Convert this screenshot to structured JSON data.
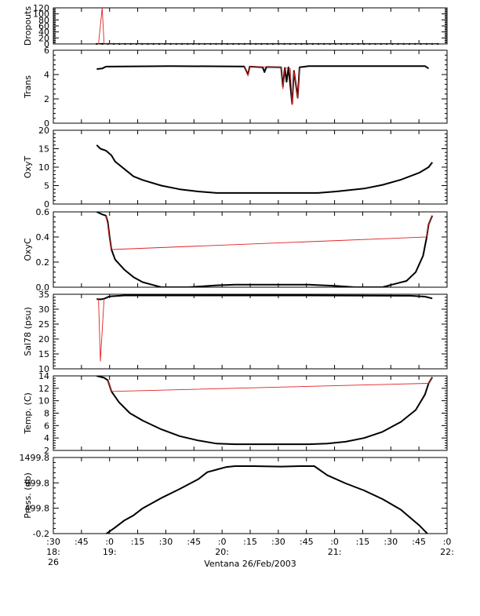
{
  "chart_data": {
    "type": "line",
    "xlabel": "Ventana 26/Feb/2003",
    "xlim": [
      "18:26:30",
      "22:00"
    ],
    "x_ticks": [
      {
        "label": ":30",
        "hour": "18:",
        "day": "26"
      },
      {
        "label": ":45",
        "hour": "",
        "day": ""
      },
      {
        "label": ":0",
        "hour": "19:",
        "day": ""
      },
      {
        "label": ":15",
        "hour": "",
        "day": ""
      },
      {
        "label": ":30",
        "hour": "",
        "day": ""
      },
      {
        "label": ":45",
        "hour": "",
        "day": ""
      },
      {
        "label": ":0",
        "hour": "20:",
        "day": ""
      },
      {
        "label": ":15",
        "hour": "",
        "day": ""
      },
      {
        "label": ":30",
        "hour": "",
        "day": ""
      },
      {
        "label": ":45",
        "hour": "",
        "day": ""
      },
      {
        "label": ":0",
        "hour": "21:",
        "day": ""
      },
      {
        "label": ":15",
        "hour": "",
        "day": ""
      },
      {
        "label": ":30",
        "hour": "",
        "day": ""
      },
      {
        "label": ":45",
        "hour": "",
        "day": ""
      },
      {
        "label": ":0",
        "hour": "22:",
        "day": ""
      }
    ],
    "panels": [
      {
        "ylabel": "Dropouts",
        "ylim": [
          0,
          130
        ],
        "ytick_labels": [
          "0",
          "20",
          "40",
          "60",
          "80",
          "100",
          "120"
        ],
        "series": [
          {
            "color": "#000000",
            "points": [
              [
                "18:50",
                0
              ],
              [
                "21:55",
                0
              ]
            ]
          },
          {
            "color": "#e02020",
            "points": [
              [
                "18:50",
                0
              ],
              [
                "18:51",
                0
              ],
              [
                "18:53",
                130
              ],
              [
                "18:54",
                0
              ],
              [
                "21:55",
                0
              ]
            ]
          }
        ]
      },
      {
        "ylabel": "Trans",
        "ylim": [
          0,
          6
        ],
        "ytick_labels": [
          "0",
          "2",
          "4",
          "6"
        ],
        "series": [
          {
            "color": "#000000",
            "points": [
              [
                "18:50",
                4.45
              ],
              [
                "18:53",
                4.5
              ],
              [
                "18:55",
                4.65
              ],
              [
                "19:30",
                4.7
              ],
              [
                "20:10",
                4.66
              ],
              [
                "20:12",
                4.0
              ],
              [
                "20:13",
                4.65
              ],
              [
                "20:20",
                4.6
              ],
              [
                "20:21",
                4.2
              ],
              [
                "20:22",
                4.62
              ],
              [
                "20:30",
                4.6
              ],
              [
                "20:31",
                3.0
              ],
              [
                "20:32",
                4.55
              ],
              [
                "20:33",
                3.4
              ],
              [
                "20:34",
                4.6
              ],
              [
                "20:36",
                1.6
              ],
              [
                "20:37",
                4.3
              ],
              [
                "20:39",
                2.1
              ],
              [
                "20:40",
                4.6
              ],
              [
                "20:45",
                4.7
              ],
              [
                "21:48",
                4.7
              ],
              [
                "21:50",
                4.5
              ]
            ]
          },
          {
            "color": "#e02020",
            "points": [
              [
                "20:10",
                4.66
              ],
              [
                "20:12",
                3.9
              ],
              [
                "20:13",
                4.65
              ],
              [
                "20:30",
                4.6
              ],
              [
                "20:31",
                2.8
              ],
              [
                "20:32",
                4.55
              ],
              [
                "20:35",
                4.5
              ],
              [
                "20:36",
                1.5
              ],
              [
                "20:37",
                4.3
              ],
              [
                "20:39",
                2.0
              ],
              [
                "20:40",
                4.6
              ]
            ]
          }
        ]
      },
      {
        "ylabel": "OxyT",
        "ylim": [
          0,
          20
        ],
        "ytick_labels": [
          "0",
          "5",
          "10",
          "15",
          "20"
        ],
        "series": [
          {
            "color": "#000000",
            "points": [
              [
                "18:50",
                16.0
              ],
              [
                "18:52",
                15.0
              ],
              [
                "18:55",
                14.5
              ],
              [
                "18:58",
                13.2
              ],
              [
                "19:00",
                11.5
              ],
              [
                "19:05",
                9.5
              ],
              [
                "19:10",
                7.5
              ],
              [
                "19:15",
                6.5
              ],
              [
                "19:25",
                5.0
              ],
              [
                "19:35",
                4.0
              ],
              [
                "19:45",
                3.4
              ],
              [
                "19:55",
                3.0
              ],
              [
                "20:05",
                3.0
              ],
              [
                "20:45",
                3.0
              ],
              [
                "20:50",
                3.0
              ],
              [
                "21:00",
                3.4
              ],
              [
                "21:15",
                4.2
              ],
              [
                "21:25",
                5.2
              ],
              [
                "21:35",
                6.6
              ],
              [
                "21:45",
                8.5
              ],
              [
                "21:50",
                10.0
              ],
              [
                "21:52",
                11.3
              ]
            ]
          }
        ]
      },
      {
        "ylabel": "OxyC",
        "ylim": [
          0.0,
          0.6
        ],
        "ytick_labels": [
          "0.0",
          "0.2",
          "0.4",
          "0.6"
        ],
        "series": [
          {
            "color": "#000000",
            "points": [
              [
                "18:50",
                0.6
              ],
              [
                "18:53",
                0.58
              ],
              [
                "18:55",
                0.57
              ],
              [
                "18:56",
                0.52
              ],
              [
                "18:57",
                0.4
              ],
              [
                "18:58",
                0.3
              ],
              [
                "19:00",
                0.22
              ],
              [
                "19:05",
                0.14
              ],
              [
                "19:10",
                0.08
              ],
              [
                "19:15",
                0.04
              ],
              [
                "19:20",
                0.02
              ],
              [
                "19:25",
                0.0
              ],
              [
                "19:40",
                0.0
              ],
              [
                "19:55",
                0.015
              ],
              [
                "20:05",
                0.02
              ],
              [
                "20:45",
                0.02
              ],
              [
                "21:00",
                0.01
              ],
              [
                "21:10",
                0.0
              ],
              [
                "21:25",
                0.0
              ],
              [
                "21:30",
                0.02
              ],
              [
                "21:38",
                0.05
              ],
              [
                "21:43",
                0.12
              ],
              [
                "21:47",
                0.25
              ],
              [
                "21:49",
                0.4
              ],
              [
                "21:50",
                0.5
              ],
              [
                "21:52",
                0.57
              ]
            ]
          },
          {
            "color": "#e02020",
            "points": [
              [
                "18:55",
                0.57
              ],
              [
                "18:56",
                0.5
              ],
              [
                "18:57",
                0.38
              ],
              [
                "18:58",
                0.3
              ],
              [
                "21:49",
                0.4
              ],
              [
                "21:50",
                0.5
              ],
              [
                "21:52",
                0.57
              ]
            ]
          }
        ]
      },
      {
        "ylabel": "Sal78 (psu)",
        "ylim": [
          10,
          35
        ],
        "ytick_labels": [
          "10",
          "15",
          "20",
          "25",
          "30",
          "35"
        ],
        "series": [
          {
            "color": "#000000",
            "points": [
              [
                "18:50",
                33.4
              ],
              [
                "18:52",
                33.3
              ],
              [
                "18:54",
                33.5
              ],
              [
                "18:57",
                34.3
              ],
              [
                "19:05",
                34.6
              ],
              [
                "19:30",
                34.6
              ],
              [
                "20:45",
                34.6
              ],
              [
                "21:40",
                34.5
              ],
              [
                "21:48",
                34.2
              ],
              [
                "21:52",
                33.6
              ]
            ]
          },
          {
            "color": "#e02020",
            "points": [
              [
                "18:51",
                33.4
              ],
              [
                "18:52",
                12.5
              ],
              [
                "18:54",
                33.5
              ]
            ]
          }
        ]
      },
      {
        "ylabel": "Temp. (C)",
        "ylim": [
          2,
          14
        ],
        "ytick_labels": [
          "2",
          "4",
          "6",
          "8",
          "10",
          "12",
          "14"
        ],
        "series": [
          {
            "color": "#000000",
            "points": [
              [
                "18:50",
                14.0
              ],
              [
                "18:54",
                13.7
              ],
              [
                "18:56",
                13.3
              ],
              [
                "18:58",
                11.5
              ],
              [
                "19:02",
                9.8
              ],
              [
                "19:08",
                8.0
              ],
              [
                "19:15",
                6.8
              ],
              [
                "19:25",
                5.4
              ],
              [
                "19:35",
                4.3
              ],
              [
                "19:45",
                3.6
              ],
              [
                "19:55",
                3.1
              ],
              [
                "20:05",
                3.0
              ],
              [
                "20:45",
                3.0
              ],
              [
                "20:55",
                3.1
              ],
              [
                "21:05",
                3.4
              ],
              [
                "21:15",
                4.0
              ],
              [
                "21:25",
                5.0
              ],
              [
                "21:35",
                6.6
              ],
              [
                "21:43",
                8.5
              ],
              [
                "21:48",
                11.0
              ],
              [
                "21:50",
                12.8
              ],
              [
                "21:52",
                13.8
              ]
            ]
          },
          {
            "color": "#e02020",
            "points": [
              [
                "18:56",
                13.3
              ],
              [
                "18:58",
                11.5
              ],
              [
                "21:50",
                12.8
              ],
              [
                "21:52",
                13.8
              ]
            ]
          }
        ]
      },
      {
        "ylabel": "Press. (db)",
        "ylim": [
          -0.2,
          1499.8
        ],
        "ytick_labels": [
          "-0.2",
          "499.8",
          "999.8",
          "1499.8"
        ],
        "series": [
          {
            "color": "#000000",
            "points": [
              [
                "18:50",
                -120
              ],
              [
                "18:55",
                -10
              ],
              [
                "19:00",
                120
              ],
              [
                "19:05",
                260
              ],
              [
                "19:10",
                360
              ],
              [
                "19:15",
                500
              ],
              [
                "19:25",
                700
              ],
              [
                "19:35",
                880
              ],
              [
                "19:45",
                1070
              ],
              [
                "19:50",
                1210
              ],
              [
                "19:55",
                1260
              ],
              [
                "20:00",
                1310
              ],
              [
                "20:05",
                1330
              ],
              [
                "20:15",
                1330
              ],
              [
                "20:30",
                1320
              ],
              [
                "20:40",
                1330
              ],
              [
                "20:48",
                1330
              ],
              [
                "20:55",
                1150
              ],
              [
                "21:05",
                990
              ],
              [
                "21:15",
                850
              ],
              [
                "21:25",
                680
              ],
              [
                "21:35",
                470
              ],
              [
                "21:45",
                160
              ],
              [
                "21:52",
                -100
              ]
            ]
          }
        ]
      }
    ]
  }
}
